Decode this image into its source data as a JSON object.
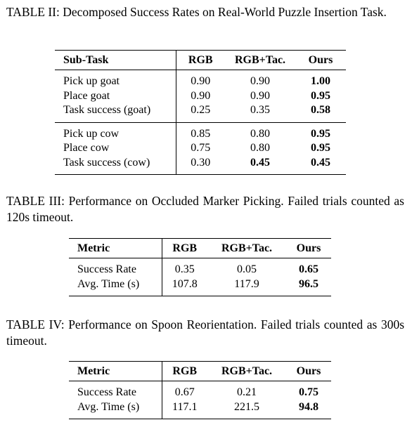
{
  "tables": [
    {
      "caption": "TABLE II: Decomposed Success Rates on Real-World Puzzle Insertion Task.",
      "header": [
        "Sub-Task",
        "RGB",
        "RGB+Tac.",
        "Ours"
      ],
      "groups": [
        [
          [
            "Pick up goat",
            "0.90",
            "0.90",
            {
              "text": "1.00",
              "bold": true
            }
          ],
          [
            "Place goat",
            "0.90",
            "0.90",
            {
              "text": "0.95",
              "bold": true
            }
          ],
          [
            "Task success (goat)",
            "0.25",
            "0.35",
            {
              "text": "0.58",
              "bold": true
            }
          ]
        ],
        [
          [
            "Pick up cow",
            "0.85",
            "0.80",
            {
              "text": "0.95",
              "bold": true
            }
          ],
          [
            "Place cow",
            "0.75",
            "0.80",
            {
              "text": "0.95",
              "bold": true
            }
          ],
          [
            "Task success (cow)",
            "0.30",
            {
              "text": "0.45",
              "bold": true
            },
            {
              "text": "0.45",
              "bold": true
            }
          ]
        ]
      ]
    },
    {
      "caption": "TABLE III: Performance on Occluded Marker Picking. Failed trials counted as 120s timeout.",
      "header": [
        "Metric",
        "RGB",
        "RGB+Tac.",
        "Ours"
      ],
      "groups": [
        [
          [
            "Success Rate",
            "0.35",
            "0.05",
            {
              "text": "0.65",
              "bold": true
            }
          ],
          [
            "Avg. Time (s)",
            "107.8",
            "117.9",
            {
              "text": "96.5",
              "bold": true
            }
          ]
        ]
      ]
    },
    {
      "caption": "TABLE IV: Performance on Spoon Reorientation. Failed trials counted as 300s timeout.",
      "header": [
        "Metric",
        "RGB",
        "RGB+Tac.",
        "Ours"
      ],
      "groups": [
        [
          [
            "Success Rate",
            "0.67",
            "0.21",
            {
              "text": "0.75",
              "bold": true
            }
          ],
          [
            "Avg. Time (s)",
            "117.1",
            "221.5",
            {
              "text": "94.8",
              "bold": true
            }
          ]
        ]
      ]
    }
  ]
}
